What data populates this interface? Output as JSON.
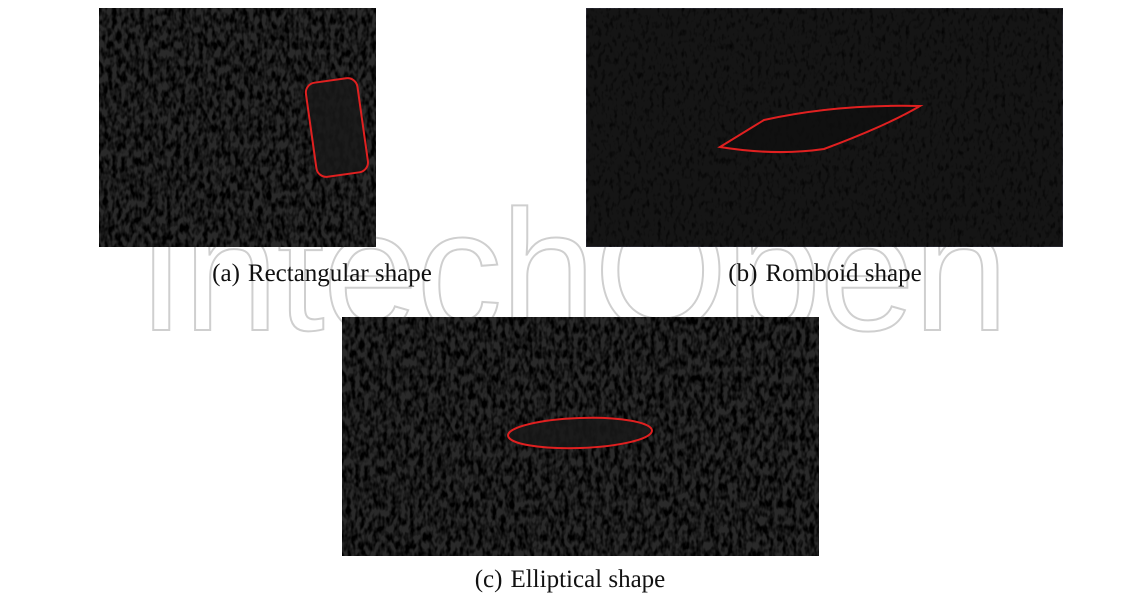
{
  "watermark": "IntechOpen",
  "figures": [
    {
      "label": "(a)",
      "caption": "Rectangular shape"
    },
    {
      "label": "(b)",
      "caption": "Romboid shape"
    },
    {
      "label": "(c)",
      "caption": "Elliptical shape"
    }
  ]
}
